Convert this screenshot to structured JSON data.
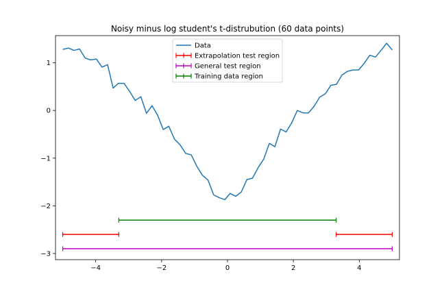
{
  "chart_data": {
    "type": "line",
    "title": "Noisy minus log student's t-distrubution (60 data points)",
    "xlabel": "",
    "ylabel": "",
    "xlim": [
      -5.22,
      5.22
    ],
    "ylim": [
      -3.13,
      1.57
    ],
    "x_ticks": [
      -4,
      -2,
      0,
      2,
      4
    ],
    "x_tick_labels": [
      "−4",
      "−2",
      "0",
      "2",
      "4"
    ],
    "y_ticks": [
      -3,
      -2,
      -1,
      0,
      1
    ],
    "y_tick_labels": [
      "−3",
      "−2",
      "−1",
      "0",
      "1"
    ],
    "grid": false,
    "legend_position": "upper-center",
    "series": [
      {
        "name": "Data",
        "color": "#1f77b4",
        "x": [
          -5.0,
          -4.83,
          -4.66,
          -4.49,
          -4.32,
          -4.15,
          -3.98,
          -3.81,
          -3.64,
          -3.47,
          -3.31,
          -3.14,
          -2.97,
          -2.8,
          -2.63,
          -2.46,
          -2.29,
          -2.12,
          -1.95,
          -1.78,
          -1.61,
          -1.44,
          -1.27,
          -1.1,
          -0.93,
          -0.76,
          -0.59,
          -0.42,
          -0.25,
          -0.08,
          0.08,
          0.25,
          0.42,
          0.59,
          0.76,
          0.93,
          1.1,
          1.27,
          1.44,
          1.61,
          1.78,
          1.95,
          2.12,
          2.29,
          2.46,
          2.63,
          2.8,
          2.97,
          3.14,
          3.31,
          3.47,
          3.64,
          3.81,
          3.98,
          4.15,
          4.32,
          4.49,
          4.66,
          4.83,
          5.0
        ],
        "y": [
          1.28,
          1.31,
          1.26,
          1.29,
          1.1,
          1.06,
          1.08,
          0.91,
          0.96,
          0.47,
          0.57,
          0.57,
          0.4,
          0.21,
          0.29,
          -0.06,
          0.1,
          -0.1,
          -0.4,
          -0.33,
          -0.6,
          -0.72,
          -0.9,
          -0.93,
          -1.17,
          -1.36,
          -1.46,
          -1.77,
          -1.83,
          -1.87,
          -1.74,
          -1.8,
          -1.71,
          -1.45,
          -1.42,
          -1.2,
          -1.02,
          -0.69,
          -0.76,
          -0.39,
          -0.45,
          -0.26,
          0.0,
          -0.05,
          -0.05,
          0.09,
          0.28,
          0.35,
          0.53,
          0.55,
          0.74,
          0.82,
          0.85,
          0.85,
          0.99,
          1.16,
          1.12,
          1.26,
          1.41,
          1.27
        ]
      },
      {
        "name": "Extrapolation test region",
        "color": "#ff0000",
        "segments": [
          {
            "x": [
              -5.0,
              -3.3
            ],
            "y": -2.6
          },
          {
            "x": [
              3.3,
              5.0
            ],
            "y": -2.6
          }
        ]
      },
      {
        "name": "General test region",
        "color": "#bf00bf",
        "segments": [
          {
            "x": [
              -5.0,
              5.0
            ],
            "y": -2.9
          }
        ]
      },
      {
        "name": "Training data region",
        "color": "#008000",
        "segments": [
          {
            "x": [
              -3.3,
              3.3
            ],
            "y": -2.3
          }
        ]
      }
    ]
  }
}
